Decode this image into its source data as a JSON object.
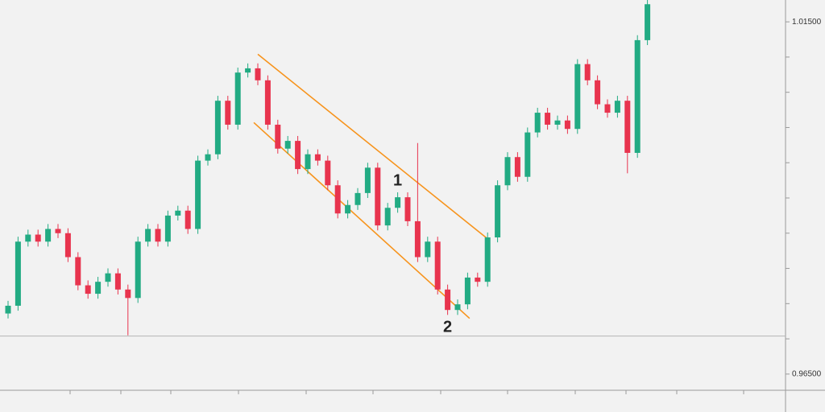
{
  "chart_data": {
    "type": "candlestick",
    "ylim": [
      0.9627,
      1.0181
    ],
    "yticks": [
      {
        "value": 1.015,
        "label": "1.01500"
      },
      {
        "value": 0.965,
        "label": "0.96500"
      }
    ],
    "minor_yticks": [
      1.01,
      1.005,
      1.0,
      0.995,
      0.99,
      0.985,
      0.98,
      0.975,
      0.97
    ],
    "hline": 0.9704,
    "up_color": "#22ab83",
    "down_color": "#e8344e",
    "open": [
      0.9736,
      0.9747,
      0.9838,
      0.9848,
      0.9838,
      0.9856,
      0.985,
      0.9816,
      0.9776,
      0.9764,
      0.9781,
      0.9793,
      0.977,
      0.9758,
      0.9838,
      0.9856,
      0.9838,
      0.9875,
      0.9882,
      0.9856,
      0.9953,
      0.9962,
      1.0038,
      1.0004,
      1.0078,
      1.0084,
      1.0067,
      1.0004,
      0.997,
      0.9981,
      0.9941,
      0.9962,
      0.9953,
      0.9918,
      0.9878,
      0.989,
      0.9907,
      0.9943,
      0.9861,
      0.9886,
      0.9901,
      0.9867,
      0.9816,
      0.9838,
      0.977,
      0.9741,
      0.9749,
      0.9787,
      0.9781,
      0.9844,
      0.9918,
      0.9958,
      0.993,
      0.9993,
      1.0021,
      1.0004,
      1.001,
      0.9998,
      1.009,
      1.0067,
      1.0033,
      1.0021,
      1.0038,
      0.9964,
      1.0124
    ],
    "high": [
      0.9754,
      0.9845,
      0.9855,
      0.9855,
      0.9863,
      0.9863,
      0.9857,
      0.9823,
      0.9783,
      0.9788,
      0.98,
      0.98,
      0.9777,
      0.9845,
      0.9863,
      0.9863,
      0.9882,
      0.9889,
      0.9889,
      0.996,
      0.9969,
      1.0045,
      1.0045,
      1.0085,
      1.0091,
      1.0091,
      1.0074,
      1.0011,
      0.9988,
      0.9988,
      0.9969,
      0.9969,
      0.996,
      0.9925,
      0.9897,
      0.9914,
      0.995,
      0.995,
      0.9893,
      0.9908,
      0.9908,
      0.9978,
      0.9845,
      0.9845,
      0.9777,
      0.9756,
      0.9794,
      0.9794,
      0.9851,
      0.9925,
      0.9965,
      0.9965,
      1.0,
      1.0028,
      1.0028,
      1.0017,
      1.0017,
      1.0097,
      1.0097,
      1.0074,
      1.004,
      1.0045,
      1.0045,
      1.0131,
      1.0182
    ],
    "low": [
      0.9729,
      0.974,
      0.9831,
      0.9831,
      0.9831,
      0.9843,
      0.9809,
      0.9769,
      0.9757,
      0.9757,
      0.9774,
      0.9763,
      0.9705,
      0.9751,
      0.9831,
      0.9831,
      0.9831,
      0.9868,
      0.9849,
      0.9849,
      0.9946,
      0.9955,
      0.9997,
      0.9997,
      1.0071,
      1.006,
      0.9997,
      0.9963,
      0.9963,
      0.9934,
      0.9934,
      0.9946,
      0.9911,
      0.9871,
      0.9871,
      0.9883,
      0.99,
      0.9854,
      0.9854,
      0.9879,
      0.986,
      0.9809,
      0.9809,
      0.9763,
      0.9734,
      0.9734,
      0.9742,
      0.9774,
      0.9774,
      0.9837,
      0.9911,
      0.9923,
      0.9923,
      0.9986,
      0.9997,
      0.9997,
      0.9991,
      0.9991,
      1.006,
      1.0026,
      1.0014,
      1.0014,
      0.9935,
      0.9957,
      1.0117
    ],
    "close": [
      0.9747,
      0.9838,
      0.9848,
      0.9838,
      0.9856,
      0.985,
      0.9816,
      0.9776,
      0.9764,
      0.9781,
      0.9793,
      0.977,
      0.9758,
      0.9838,
      0.9856,
      0.9838,
      0.9875,
      0.9882,
      0.9856,
      0.9953,
      0.9962,
      1.0038,
      1.0004,
      1.0078,
      1.0084,
      1.0067,
      1.0004,
      0.997,
      0.9981,
      0.9941,
      0.9962,
      0.9953,
      0.9918,
      0.9878,
      0.989,
      0.9907,
      0.9943,
      0.9861,
      0.9886,
      0.9901,
      0.9867,
      0.9816,
      0.9838,
      0.977,
      0.9741,
      0.9749,
      0.9787,
      0.9781,
      0.9844,
      0.9918,
      0.9958,
      0.993,
      0.9993,
      1.0021,
      1.0004,
      1.001,
      0.9998,
      1.009,
      1.0067,
      1.0033,
      1.0021,
      1.0038,
      0.9964,
      1.0124,
      1.0175
    ],
    "trend_lines": [
      {
        "color": "#f7941d",
        "x": [
          25,
          48
        ],
        "y": [
          1.0104,
          0.9842
        ]
      },
      {
        "color": "#f7941d",
        "x": [
          24.6,
          46.2
        ],
        "y": [
          1.0007,
          0.9729
        ]
      }
    ],
    "annotations": [
      "1",
      "2"
    ]
  }
}
